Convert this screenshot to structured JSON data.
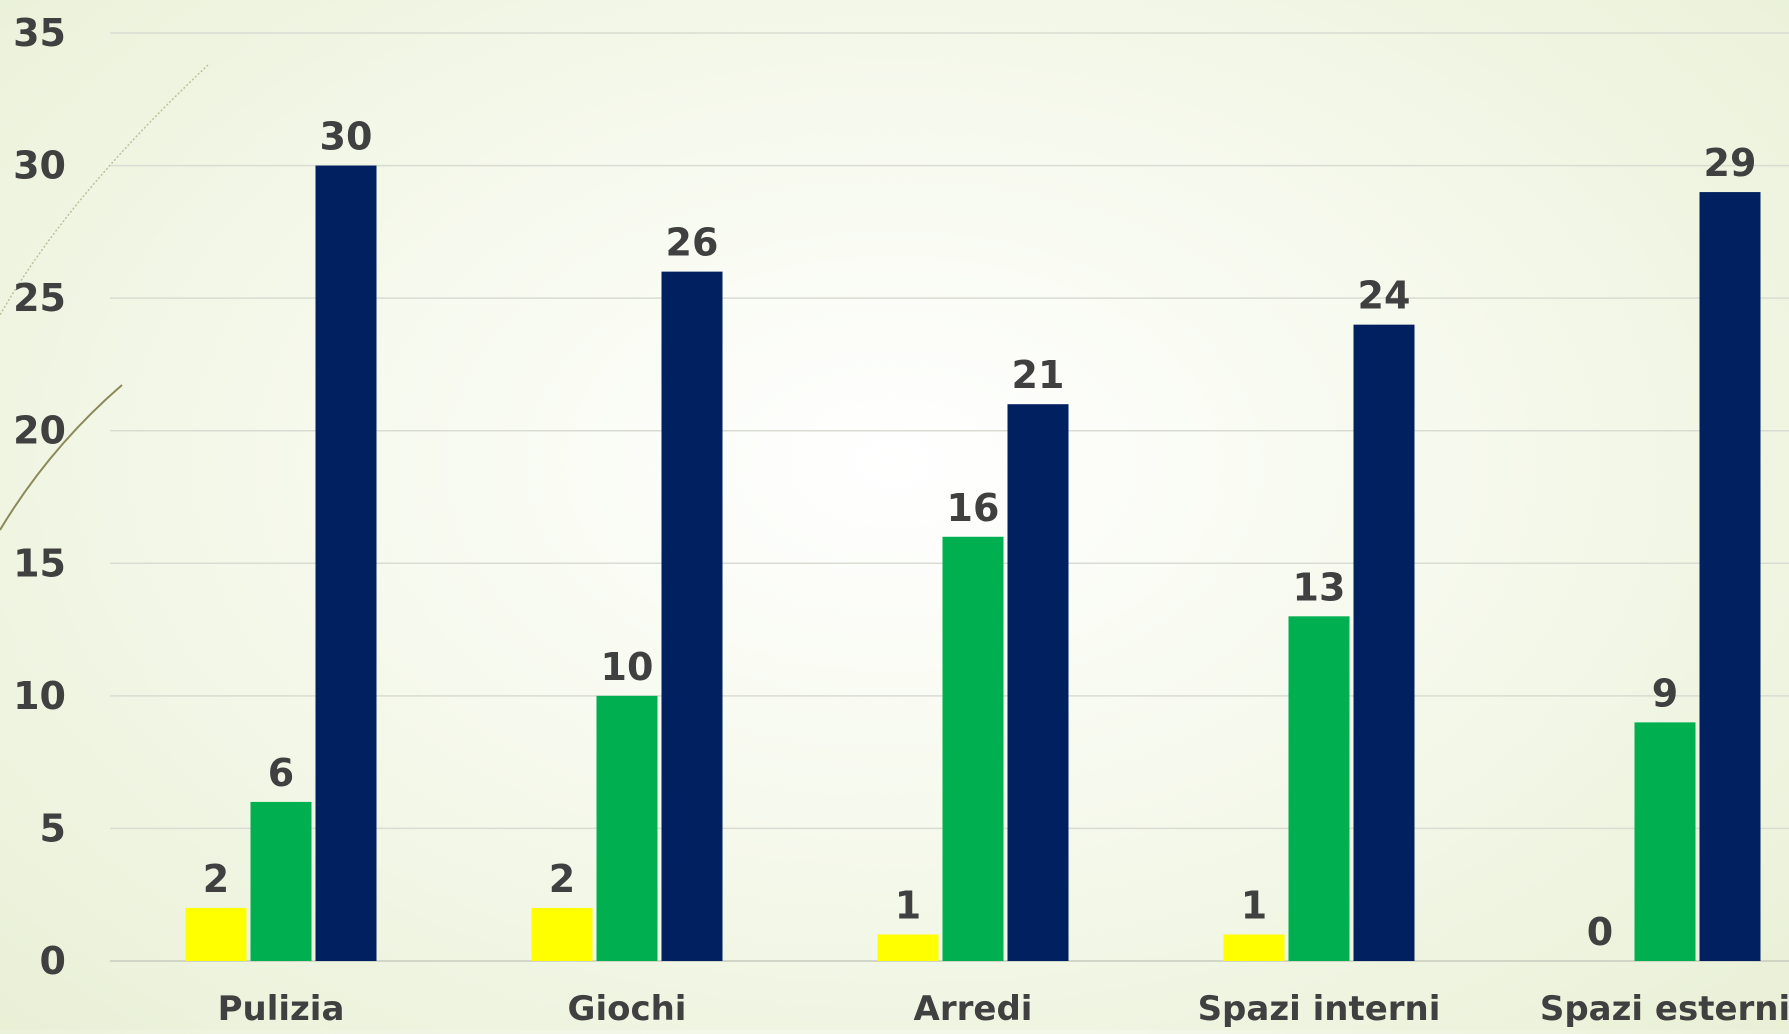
{
  "chart_data": {
    "type": "bar",
    "categories": [
      "Pulizia",
      "Giochi",
      "Arredi",
      "Spazi interni",
      "Spazi esterni"
    ],
    "series": [
      {
        "values": [
          2,
          2,
          1,
          1,
          0
        ],
        "color": "#ffff00"
      },
      {
        "values": [
          6,
          10,
          16,
          13,
          9
        ],
        "color": "#00b050"
      },
      {
        "values": [
          30,
          26,
          21,
          24,
          29
        ],
        "color": "#002060"
      }
    ],
    "ylim": [
      0,
      35
    ],
    "yticks": [
      "0",
      "5",
      "10",
      "15",
      "20",
      "25",
      "30",
      "35"
    ],
    "grid": true,
    "data_labels": true
  }
}
